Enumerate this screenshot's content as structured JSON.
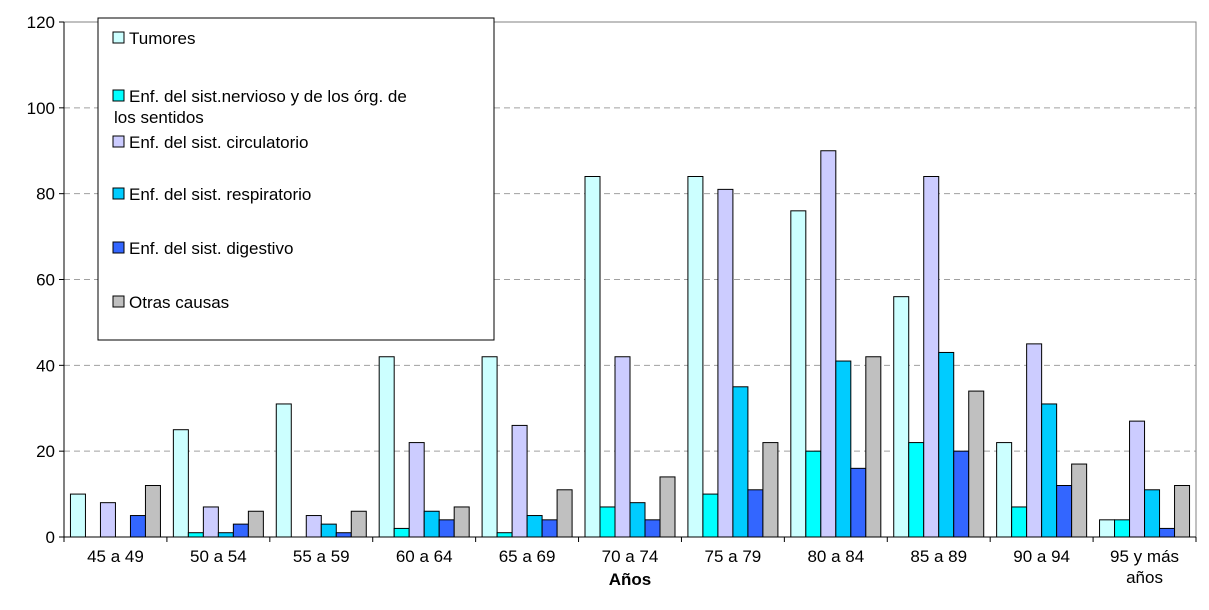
{
  "chart_data": {
    "type": "bar",
    "title": "",
    "xlabel": "Años",
    "ylabel": "",
    "ylim": [
      0,
      120
    ],
    "yticks": [
      0,
      20,
      40,
      60,
      80,
      100,
      120
    ],
    "grid": "horizontal-dashed",
    "legend_placement": "top-left",
    "categories": [
      "45 a 49",
      "50 a 54",
      "55 a 59",
      "60 a 64",
      "65 a 69",
      "70 a 74",
      "75 a 79",
      "80 a 84",
      "85 a 89",
      "90 a 94",
      "95 y más años"
    ],
    "series": [
      {
        "name": "Tumores",
        "color": "#ccffff",
        "values": [
          10,
          25,
          31,
          42,
          42,
          84,
          84,
          76,
          56,
          22,
          4
        ]
      },
      {
        "name": "Enf. del sist.nervioso y de los órg. de los sentidos",
        "color": "#00ffff",
        "values": [
          0,
          1,
          0,
          2,
          1,
          7,
          10,
          20,
          22,
          7,
          4
        ]
      },
      {
        "name": "Enf. del sist. circulatorio",
        "color": "#ccccff",
        "values": [
          8,
          7,
          5,
          22,
          26,
          42,
          81,
          90,
          84,
          45,
          27
        ]
      },
      {
        "name": "Enf. del sist. respiratorio",
        "color": "#00ccff",
        "values": [
          0,
          1,
          3,
          6,
          5,
          8,
          35,
          41,
          43,
          31,
          11
        ]
      },
      {
        "name": "Enf. del sist. digestivo",
        "color": "#3366ff",
        "values": [
          5,
          3,
          1,
          4,
          4,
          4,
          11,
          16,
          20,
          12,
          2
        ]
      },
      {
        "name": "Otras causas",
        "color": "#c0c0c0",
        "values": [
          12,
          6,
          6,
          7,
          11,
          14,
          22,
          42,
          34,
          17,
          12
        ]
      }
    ]
  }
}
